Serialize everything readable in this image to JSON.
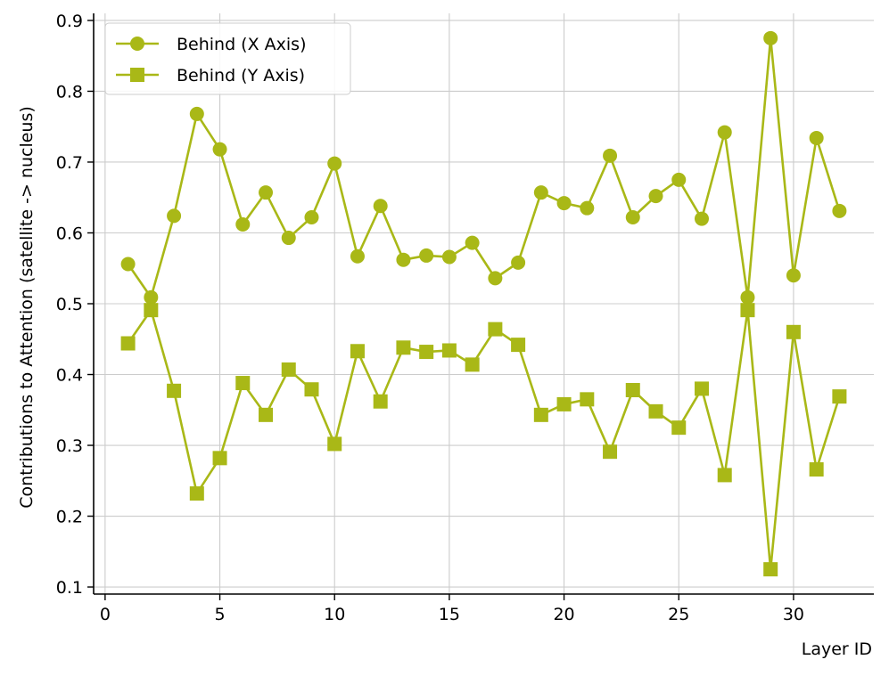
{
  "chart_data": {
    "type": "line",
    "title": "",
    "xlabel": "Layer ID",
    "ylabel": "Contributions to Attention (satellite -> nucleus)",
    "xlim": [
      -0.5,
      33.5
    ],
    "ylim": [
      0.09,
      0.91
    ],
    "xticks": [
      0,
      5,
      10,
      15,
      20,
      25,
      30
    ],
    "yticks": [
      0.1,
      0.2,
      0.3,
      0.4,
      0.5,
      0.6,
      0.7,
      0.8,
      0.9
    ],
    "xtick_labels": [
      "0",
      "5",
      "10",
      "15",
      "20",
      "25",
      "30"
    ],
    "ytick_labels": [
      "0.1",
      "0.2",
      "0.3",
      "0.4",
      "0.5",
      "0.6",
      "0.7",
      "0.8",
      "0.9"
    ],
    "grid": true,
    "legend_position": "upper-left",
    "x": [
      1,
      2,
      3,
      4,
      5,
      6,
      7,
      8,
      9,
      10,
      11,
      12,
      13,
      14,
      15,
      16,
      17,
      18,
      19,
      20,
      21,
      22,
      23,
      24,
      25,
      26,
      27,
      28,
      29,
      30,
      31,
      32
    ],
    "series": [
      {
        "name": "Behind (X Axis)",
        "marker": "circle",
        "color": "#a9b817",
        "values": [
          0.556,
          0.509,
          0.624,
          0.768,
          0.718,
          0.612,
          0.657,
          0.593,
          0.622,
          0.698,
          0.567,
          0.638,
          0.562,
          0.568,
          0.566,
          0.586,
          0.536,
          0.558,
          0.657,
          0.642,
          0.635,
          0.709,
          0.622,
          0.652,
          0.675,
          0.62,
          0.742,
          0.509,
          0.875,
          0.54,
          0.734,
          0.631
        ]
      },
      {
        "name": "Behind (Y Axis)",
        "marker": "square",
        "color": "#a9b817",
        "values": [
          0.444,
          0.491,
          0.377,
          0.232,
          0.282,
          0.388,
          0.343,
          0.407,
          0.379,
          0.302,
          0.433,
          0.362,
          0.438,
          0.432,
          0.434,
          0.414,
          0.464,
          0.442,
          0.343,
          0.358,
          0.365,
          0.291,
          0.378,
          0.348,
          0.325,
          0.38,
          0.258,
          0.491,
          0.125,
          0.46,
          0.266,
          0.369
        ]
      }
    ]
  }
}
